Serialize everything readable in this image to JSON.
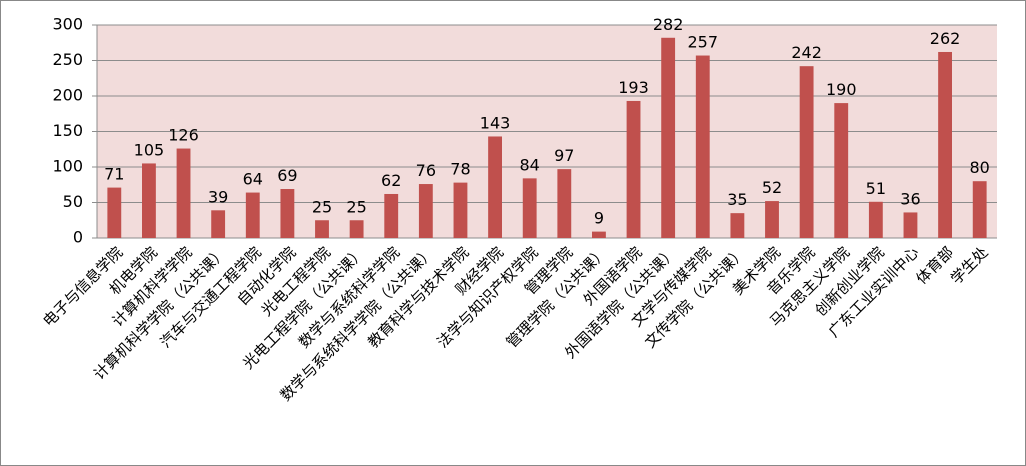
{
  "chart_data": {
    "type": "bar",
    "categories": [
      "电子与信息学院",
      "机电学院",
      "计算机科学学院",
      "计算机科学学院（公共课）",
      "汽车与交通工程学院",
      "自动化学院",
      "光电工程学院",
      "光电工程学院（公共课）",
      "数学与系统科学学院",
      "数学与系统科学学院（公共课）",
      "教育科学与技术学院",
      "财经学院",
      "法学与知识产权学院",
      "管理学院",
      "管理学院（公共课）",
      "外国语学院",
      "外国语学院（公共课）",
      "文学与传媒学院",
      "文传学院（公共课）",
      "美术学院",
      "音乐学院",
      "马克思主义学院",
      "创新创业学院",
      "广东工业实训中心",
      "体育部",
      "学生处"
    ],
    "values": [
      71,
      105,
      126,
      39,
      64,
      69,
      25,
      25,
      62,
      76,
      78,
      143,
      84,
      97,
      9,
      193,
      282,
      257,
      35,
      52,
      242,
      190,
      51,
      36,
      262,
      80
    ],
    "color": "#c0504d",
    "ylim": [
      0,
      300
    ],
    "yticks": [
      0,
      50,
      100,
      150,
      200,
      250,
      300
    ],
    "grid": true
  }
}
